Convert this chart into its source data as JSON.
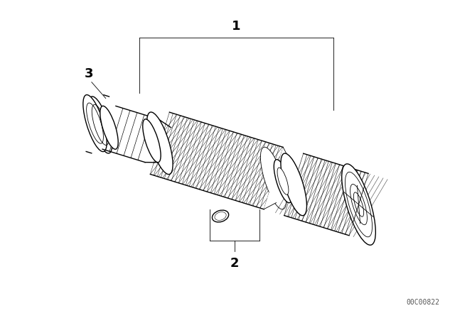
{
  "background_color": "#ffffff",
  "fig_width": 6.4,
  "fig_height": 4.48,
  "dpi": 100,
  "part_numbers": [
    "1",
    "2",
    "3"
  ],
  "watermark": "00C00822",
  "watermark_fontsize": 7,
  "label_fontsize": 13,
  "line_color": "#000000"
}
